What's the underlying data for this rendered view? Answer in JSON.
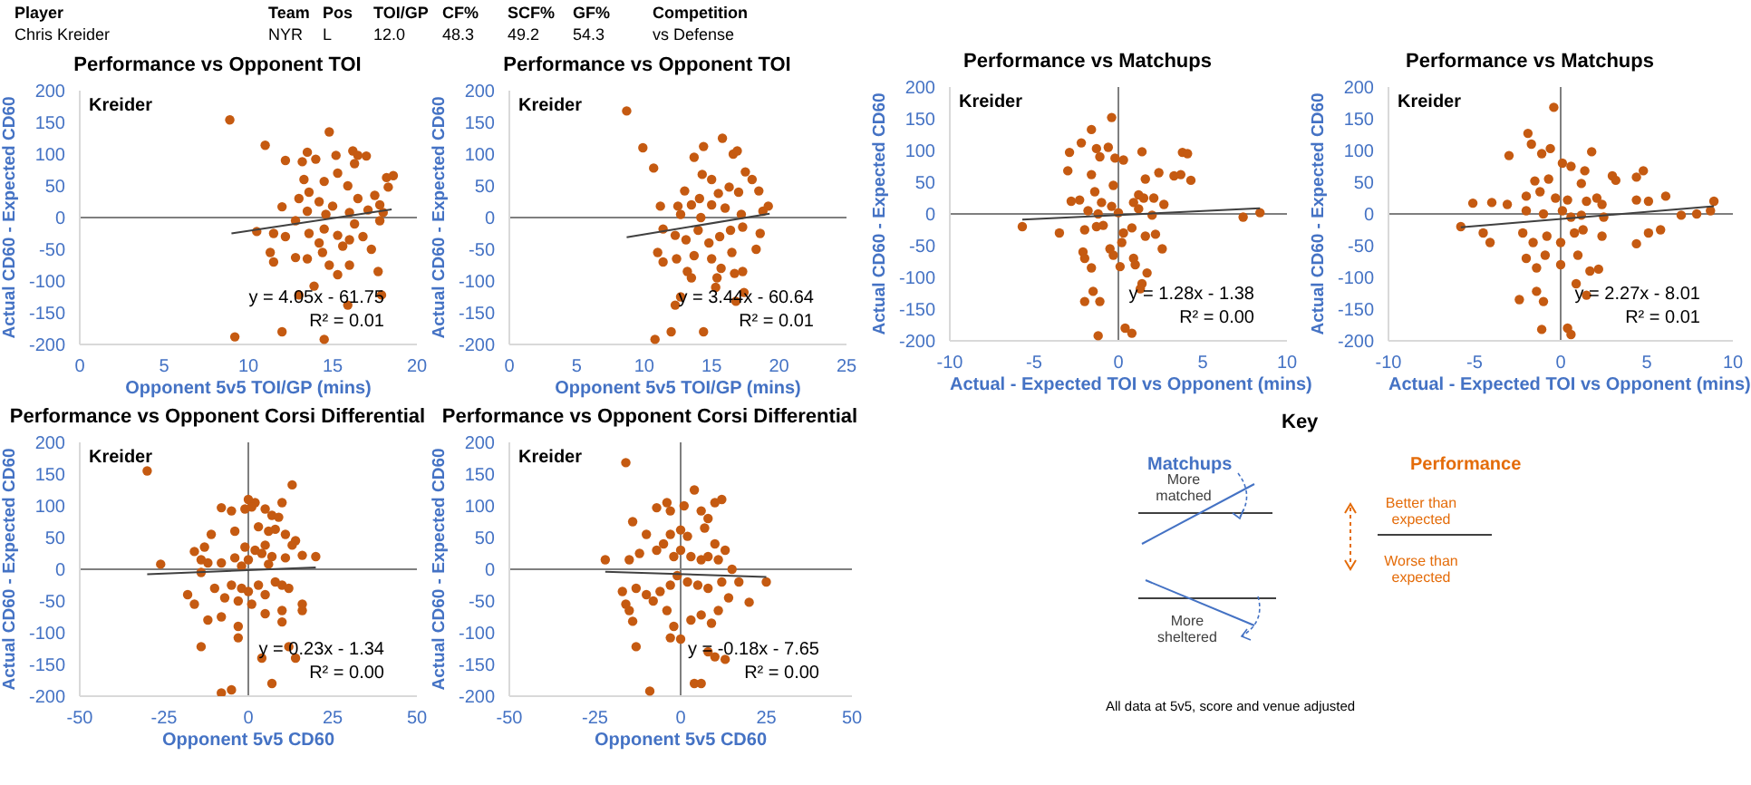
{
  "chart_data": [
    {
      "type": "other",
      "annotations": [
        "Player",
        "Team",
        "Pos",
        "TOI/GP",
        "CF%",
        "SCF%",
        "GF%",
        "Competition",
        "Chris Kreider",
        "NYR",
        "L",
        "12.0",
        "48.3",
        "49.2",
        "54.3",
        "vs Defense"
      ]
    },
    {
      "type": "scatter",
      "title": "Performance vs Opponent TOI",
      "xlabel": "Opponent 5v5 TOI/GP (mins)",
      "ylabel": "Actual CD60 - Expected CD60",
      "xlim": [
        0,
        20
      ],
      "xticks": [
        0,
        5,
        10,
        15,
        20
      ],
      "ylim": [
        -200,
        200
      ],
      "yticks": [
        -200,
        -150,
        -100,
        -50,
        0,
        50,
        100,
        150,
        200
      ],
      "ref_lines": [
        {
          "axis": "y",
          "value": 0
        }
      ],
      "annotations": [
        "Kreider",
        "y = 4.05x - 61.75",
        "R² = 0.01"
      ],
      "series": [
        {
          "type": "scatter",
          "marker": "circle",
          "color": "#c55a11",
          "x": [
            8.9,
            11.0,
            14.8,
            12.2,
            13.2,
            13.5,
            15.2,
            16.2,
            16.5,
            17.0,
            16.3,
            14.0,
            13.3,
            14.5,
            15.3,
            18.2,
            18.6,
            18.3,
            15.9,
            13.6,
            13.0,
            14.2,
            15.0,
            16.5,
            17.5,
            17.8,
            12.0,
            13.5,
            14.6,
            16.0,
            17.1,
            18.0,
            10.5,
            11.5,
            12.2,
            13.6,
            14.5,
            15.3,
            16.0,
            16.8,
            17.3,
            17.8,
            11.3,
            11.5,
            12.8,
            13.5,
            14.4,
            14.8,
            15.3,
            16.0,
            17.7,
            13.9,
            13.0,
            17.9,
            15.9,
            9.2,
            12.0,
            14.5,
            14.2,
            15.6,
            16.3,
            12.8
          ],
          "values": [
            154,
            114,
            135,
            90,
            88,
            103,
            98,
            105,
            98,
            97,
            85,
            92,
            60,
            57,
            70,
            63,
            66,
            48,
            50,
            40,
            30,
            25,
            18,
            30,
            35,
            20,
            17,
            10,
            5,
            8,
            12,
            8,
            -22,
            -25,
            -30,
            -25,
            -18,
            -28,
            -35,
            -30,
            -50,
            -5,
            -55,
            -70,
            -63,
            -65,
            -55,
            -75,
            -90,
            -75,
            -85,
            -108,
            -122,
            -122,
            -138,
            -188,
            -180,
            -192,
            -40,
            -45,
            -10,
            -5
          ]
        },
        {
          "type": "line",
          "color": "#404040",
          "x": [
            9,
            18.5
          ],
          "values": [
            -25,
            13
          ]
        }
      ]
    },
    {
      "type": "scatter",
      "title": "Performance vs Opponent TOI",
      "xlabel": "Opponent 5v5 TOI/GP (mins)",
      "ylabel": "Actual CD60 - Expected CD60",
      "xlim": [
        0,
        25
      ],
      "xticks": [
        0,
        5,
        10,
        15,
        20,
        25
      ],
      "ylim": [
        -200,
        200
      ],
      "yticks": [
        -200,
        -150,
        -100,
        -50,
        0,
        50,
        100,
        150,
        200
      ],
      "ref_lines": [
        {
          "axis": "y",
          "value": 0
        }
      ],
      "annotations": [
        "Kreider",
        "y = 3.44x - 60.64",
        "R² = 0.01"
      ],
      "series": [
        {
          "type": "scatter",
          "marker": "circle",
          "color": "#c55a11",
          "x": [
            8.7,
            9.9,
            10.7,
            14.4,
            15.8,
            13.7,
            16.6,
            16.9,
            17.5,
            18.0,
            14.3,
            15.0,
            12.5,
            11.2,
            13.0,
            14.1,
            15.5,
            16.3,
            17.0,
            18.5,
            19.2,
            18.8,
            13.5,
            15.0,
            16.0,
            17.2,
            12.7,
            14.2,
            11.4,
            12.3,
            13.1,
            14.0,
            14.8,
            15.6,
            16.4,
            17.3,
            18.6,
            11.0,
            11.4,
            12.4,
            13.7,
            15.0,
            15.7,
            16.5,
            17.3,
            18.3,
            13.2,
            13.5,
            15.3,
            12.7,
            12.3,
            16.8,
            17.4,
            10.8,
            12.0,
            14.4,
            15.4,
            16.7
          ],
          "values": [
            168,
            110,
            78,
            112,
            125,
            95,
            100,
            105,
            72,
            60,
            68,
            60,
            18,
            18,
            42,
            30,
            38,
            48,
            40,
            42,
            18,
            10,
            20,
            20,
            15,
            5,
            5,
            0,
            -18,
            -28,
            -35,
            -20,
            -40,
            -30,
            -20,
            -15,
            -25,
            -55,
            -70,
            -65,
            -60,
            -65,
            -80,
            -55,
            -85,
            -50,
            -85,
            -95,
            -110,
            -125,
            -138,
            -132,
            -118,
            -192,
            -180,
            -180,
            -95,
            -88
          ]
        },
        {
          "type": "line",
          "color": "#404040",
          "x": [
            8.7,
            19.3
          ],
          "values": [
            -31,
            6
          ]
        }
      ]
    },
    {
      "type": "scatter",
      "title": "Performance vs Matchups",
      "xlabel": "Actual - Expected TOI vs Opponent (mins)",
      "ylabel": "Actual CD60 - Expected CD60",
      "xlim": [
        -10,
        10
      ],
      "xticks": [
        -10,
        -5,
        0,
        5,
        10
      ],
      "ylim": [
        -200,
        200
      ],
      "yticks": [
        -200,
        -150,
        -100,
        -50,
        0,
        50,
        100,
        150,
        200
      ],
      "ref_lines": [
        {
          "axis": "y",
          "value": 0
        },
        {
          "axis": "x",
          "value": 0
        }
      ],
      "annotations": [
        "Kreider",
        "y = 1.28x - 1.38",
        "R² = 0.00"
      ],
      "series": [
        {
          "type": "scatter",
          "marker": "circle",
          "color": "#c55a11",
          "x": [
            -0.4,
            -1.6,
            -2.9,
            -2.2,
            -1.3,
            -0.6,
            -1.1,
            -0.2,
            0.3,
            1.4,
            3.8,
            4.1,
            -3.0,
            -1.6,
            2.4,
            3.3,
            3.7,
            4.3,
            1.6,
            -0.3,
            1.2,
            1.5,
            2.1,
            -1.4,
            -2.8,
            -2.3,
            -1.0,
            -0.4,
            0.9,
            2.7,
            -1.8,
            -1.2,
            0.0,
            1.2,
            2.0,
            7.4,
            8.4,
            -5.7,
            -3.5,
            -2.0,
            -1.3,
            -0.9,
            0.3,
            0.8,
            1.6,
            2.2,
            2.6,
            -2.1,
            -2.0,
            -0.5,
            -0.3,
            0.2,
            0.9,
            1.0,
            -1.6,
            0.1,
            1.7,
            1.4,
            1.3,
            -1.5,
            -2.0,
            -1.1,
            0.4,
            0.8,
            -1.2
          ],
          "values": [
            152,
            133,
            97,
            112,
            103,
            105,
            90,
            88,
            85,
            98,
            97,
            95,
            68,
            62,
            65,
            60,
            62,
            53,
            55,
            45,
            30,
            25,
            25,
            35,
            20,
            22,
            18,
            12,
            18,
            15,
            5,
            0,
            2,
            8,
            -2,
            -5,
            2,
            -20,
            -30,
            -25,
            -20,
            -18,
            -30,
            -22,
            -35,
            -32,
            -55,
            -60,
            -70,
            -55,
            -65,
            -45,
            -70,
            -80,
            -85,
            -83,
            -93,
            -110,
            -118,
            -122,
            -138,
            -138,
            -180,
            -188,
            -192
          ]
        },
        {
          "type": "line",
          "color": "#404040",
          "x": [
            -5.7,
            8.4
          ],
          "values": [
            -9,
            9
          ]
        }
      ]
    },
    {
      "type": "scatter",
      "title": "Performance vs Matchups",
      "xlabel": "Actual - Expected TOI vs Opponent (mins)",
      "ylabel": "Actual CD60 - Expected CD60",
      "xlim": [
        -10,
        10
      ],
      "xticks": [
        -10,
        -5,
        0,
        5,
        10
      ],
      "ylim": [
        -200,
        200
      ],
      "yticks": [
        -200,
        -150,
        -100,
        -50,
        0,
        50,
        100,
        150,
        200
      ],
      "ref_lines": [
        {
          "axis": "y",
          "value": 0
        },
        {
          "axis": "x",
          "value": 0
        }
      ],
      "annotations": [
        "Kreider",
        "y = 2.27x - 8.01",
        "R² = 0.01"
      ],
      "series": [
        {
          "type": "scatter",
          "marker": "circle",
          "color": "#c55a11",
          "x": [
            -0.4,
            -1.9,
            -1.7,
            -1.1,
            -0.6,
            -3.0,
            1.8,
            0.1,
            0.6,
            1.4,
            -1.5,
            -0.7,
            1.2,
            3.0,
            3.2,
            4.4,
            4.8,
            4.4,
            5.1,
            6.1,
            -5.1,
            -4.0,
            -3.1,
            -2.0,
            -1.2,
            -0.3,
            0.4,
            1.5,
            2.1,
            2.4,
            -2.0,
            -1.0,
            0.1,
            0.6,
            1.2,
            2.5,
            7.0,
            7.9,
            8.7,
            8.9,
            -5.8,
            -4.5,
            -4.1,
            -2.2,
            -1.6,
            -0.8,
            0.0,
            0.8,
            1.3,
            2.4,
            5.1,
            5.8,
            4.4,
            -2.0,
            -0.9,
            0.0,
            1.0,
            1.7,
            2.2,
            -1.4,
            0.9,
            1.5,
            -1.4,
            -1.0,
            -2.4,
            -1.1,
            0.4,
            0.6
          ],
          "values": [
            168,
            127,
            110,
            95,
            103,
            92,
            98,
            80,
            75,
            68,
            52,
            55,
            48,
            60,
            53,
            58,
            68,
            22,
            20,
            28,
            17,
            18,
            15,
            28,
            35,
            25,
            22,
            20,
            25,
            15,
            5,
            0,
            5,
            -5,
            -2,
            -5,
            -2,
            0,
            5,
            20,
            -20,
            -30,
            -45,
            -30,
            -45,
            -35,
            -45,
            -30,
            -25,
            -35,
            -30,
            -25,
            -47,
            -70,
            -65,
            -80,
            -65,
            -90,
            -87,
            -85,
            -110,
            -128,
            -122,
            -138,
            -135,
            -182,
            -180,
            -190
          ]
        },
        {
          "type": "line",
          "color": "#404040",
          "x": [
            -5.8,
            8.9
          ],
          "values": [
            -21,
            12
          ]
        }
      ]
    },
    {
      "type": "scatter",
      "title": "Performance vs Opponent Corsi Differential",
      "xlabel": "Opponent 5v5 CD60",
      "ylabel": "Actual CD60 - Expected CD60",
      "xlim": [
        -50,
        50
      ],
      "xticks": [
        -50,
        -25,
        0,
        25,
        50
      ],
      "ylim": [
        -200,
        200
      ],
      "yticks": [
        -200,
        -150,
        -100,
        -50,
        0,
        50,
        100,
        150,
        200
      ],
      "ref_lines": [
        {
          "axis": "y",
          "value": 0
        },
        {
          "axis": "x",
          "value": 0
        }
      ],
      "annotations": [
        "Kreider",
        "y = 0.23x - 1.34",
        "R² = 0.00"
      ],
      "series": [
        {
          "type": "scatter",
          "marker": "circle",
          "color": "#c55a11",
          "x": [
            -30,
            13,
            0,
            2,
            10,
            -8,
            -5,
            -1,
            1,
            5,
            7,
            9,
            -11,
            -4,
            3,
            6,
            8,
            11,
            14,
            -13,
            -1,
            2,
            5,
            13,
            -16,
            -14,
            -8,
            -4,
            0,
            4,
            7,
            11,
            16,
            20,
            -26,
            -12,
            -2,
            6,
            -14,
            -5,
            -2,
            0,
            3,
            5,
            8,
            10,
            12,
            -18,
            -16,
            -10,
            -7,
            -12,
            -8,
            -3,
            1,
            5,
            10,
            16,
            16,
            10,
            -3,
            -3,
            -14,
            12,
            14,
            4,
            7,
            -5,
            -8
          ],
          "values": [
            155,
            133,
            110,
            105,
            105,
            97,
            92,
            95,
            98,
            95,
            85,
            82,
            55,
            60,
            67,
            60,
            63,
            55,
            45,
            35,
            35,
            30,
            38,
            38,
            28,
            15,
            10,
            18,
            15,
            25,
            20,
            18,
            22,
            20,
            8,
            10,
            5,
            8,
            -5,
            -25,
            -30,
            -35,
            -25,
            -40,
            -20,
            -25,
            -30,
            -40,
            -55,
            -30,
            -45,
            -80,
            -75,
            -50,
            -55,
            -70,
            -65,
            -55,
            -65,
            -83,
            -90,
            -108,
            -122,
            -122,
            -140,
            -140,
            -180,
            -190,
            -195
          ]
        },
        {
          "type": "line",
          "color": "#404040",
          "x": [
            -30,
            20
          ],
          "values": [
            -8,
            3
          ]
        }
      ]
    },
    {
      "type": "scatter",
      "title": "Performance vs Opponent Corsi Differential",
      "xlabel": "Opponent 5v5 CD60",
      "ylabel": "Actual CD60 - Expected CD60",
      "xlim": [
        -50,
        50
      ],
      "xticks": [
        -50,
        -25,
        0,
        25,
        50
      ],
      "ylim": [
        -200,
        200
      ],
      "yticks": [
        -200,
        -150,
        -100,
        -50,
        0,
        50,
        100,
        150,
        200
      ],
      "ref_lines": [
        {
          "axis": "y",
          "value": 0
        },
        {
          "axis": "x",
          "value": 0
        }
      ],
      "annotations": [
        "Kreider",
        "y = -0.18x - 7.65",
        "R² = 0.00"
      ],
      "series": [
        {
          "type": "scatter",
          "marker": "circle",
          "color": "#c55a11",
          "x": [
            -16,
            4,
            12,
            10,
            1,
            -7,
            -4,
            -3,
            6,
            8,
            -14,
            -10,
            -3,
            0,
            2,
            7,
            10,
            13,
            -22,
            -15,
            -12,
            -7,
            -5,
            -2,
            0,
            3,
            6,
            8,
            11,
            15,
            -17,
            -16,
            -15,
            -13,
            -10,
            -8,
            -6,
            -3,
            -1,
            2,
            5,
            8,
            12,
            14,
            17,
            20,
            25,
            -14,
            -4,
            -2,
            0,
            3,
            6,
            9,
            11,
            -13,
            -3,
            8,
            10,
            13,
            4,
            6,
            -9
          ],
          "values": [
            168,
            125,
            110,
            105,
            100,
            97,
            105,
            92,
            92,
            80,
            75,
            55,
            55,
            62,
            52,
            65,
            40,
            30,
            15,
            15,
            25,
            30,
            40,
            20,
            30,
            20,
            15,
            20,
            15,
            0,
            -35,
            -55,
            -65,
            -30,
            -40,
            -50,
            -35,
            -25,
            -10,
            -20,
            -25,
            -30,
            -20,
            -45,
            -20,
            -52,
            -20,
            -82,
            -65,
            -90,
            -110,
            -80,
            -72,
            -85,
            -65,
            -122,
            -108,
            -130,
            -138,
            -142,
            -180,
            -180,
            -192
          ]
        },
        {
          "type": "line",
          "color": "#404040",
          "x": [
            -22,
            25
          ],
          "values": [
            -4,
            -12
          ]
        }
      ]
    },
    {
      "type": "other",
      "title": "Key",
      "annotations": [
        "Matchups",
        "More matched",
        "More sheltered",
        "Performance",
        "Better than expected",
        "Worse than expected",
        "All data at 5v5, score and venue adjusted"
      ]
    }
  ]
}
